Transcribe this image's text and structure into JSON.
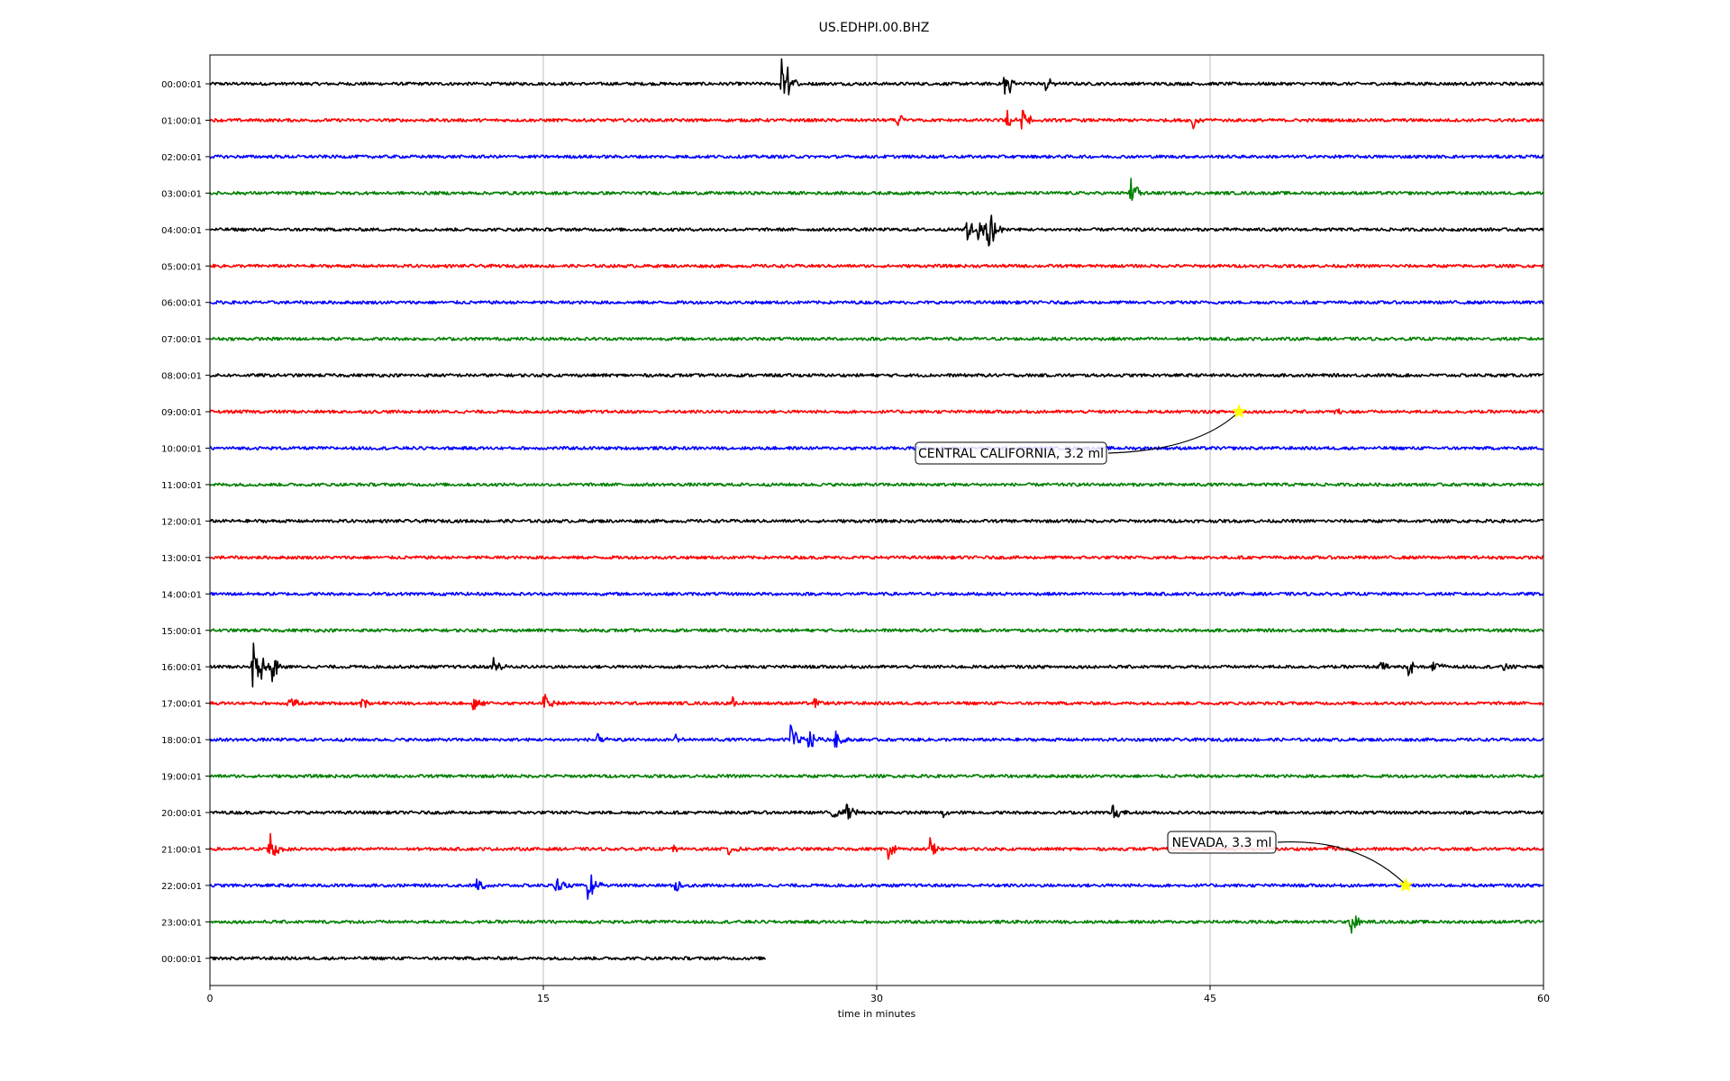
{
  "chart_data": {
    "type": "line",
    "title": "US.EDHPI.00.BHZ",
    "xlabel": "time in minutes",
    "ylabel": "",
    "xlim": [
      0,
      60
    ],
    "x_ticks": [
      0,
      15,
      30,
      45,
      60
    ],
    "grid": "vertical",
    "colors": [
      "#000000",
      "#ff0000",
      "#0000ff",
      "#008000"
    ],
    "noise_amplitude": 0.045,
    "rows": [
      {
        "label": "00:00:01",
        "end": 60,
        "events": [
          {
            "t": 25.7,
            "a": 1.1
          },
          {
            "t": 25.8,
            "a": 0.5
          },
          {
            "t": 35.7,
            "a": 0.45
          },
          {
            "t": 36.0,
            "a": 0.3
          },
          {
            "t": 37.6,
            "a": 0.25
          }
        ]
      },
      {
        "label": "01:00:01",
        "end": 60,
        "events": [
          {
            "t": 30.9,
            "a": 0.3
          },
          {
            "t": 35.8,
            "a": 0.4
          },
          {
            "t": 36.5,
            "a": 0.5
          },
          {
            "t": 44.2,
            "a": 0.35
          }
        ]
      },
      {
        "label": "02:00:01",
        "end": 60,
        "events": []
      },
      {
        "label": "03:00:01",
        "end": 60,
        "events": [
          {
            "t": 41.4,
            "a": 0.55
          }
        ]
      },
      {
        "label": "04:00:01",
        "end": 60,
        "events": [
          {
            "t": 34.0,
            "a": 0.5
          },
          {
            "t": 34.5,
            "a": 0.4
          },
          {
            "t": 34.9,
            "a": 1.0
          },
          {
            "t": 35.2,
            "a": 0.35
          }
        ]
      },
      {
        "label": "05:00:01",
        "end": 60,
        "events": []
      },
      {
        "label": "06:00:01",
        "end": 60,
        "events": []
      },
      {
        "label": "07:00:01",
        "end": 60,
        "events": []
      },
      {
        "label": "08:00:01",
        "end": 60,
        "events": []
      },
      {
        "label": "09:00:01",
        "end": 60,
        "events": [
          {
            "t": 50.6,
            "a": 0.12
          }
        ]
      },
      {
        "label": "10:00:01",
        "end": 60,
        "events": []
      },
      {
        "label": "11:00:01",
        "end": 60,
        "events": []
      },
      {
        "label": "12:00:01",
        "end": 60,
        "events": []
      },
      {
        "label": "13:00:01",
        "end": 60,
        "events": []
      },
      {
        "label": "14:00:01",
        "end": 60,
        "events": []
      },
      {
        "label": "15:00:01",
        "end": 60,
        "events": []
      },
      {
        "label": "16:00:01",
        "end": 60,
        "events": [
          {
            "t": 1.9,
            "a": 0.95
          },
          {
            "t": 2.3,
            "a": 0.5
          },
          {
            "t": 2.8,
            "a": 0.45
          },
          {
            "t": 12.7,
            "a": 0.4
          },
          {
            "t": 52.6,
            "a": 0.2
          },
          {
            "t": 53.9,
            "a": 0.3
          },
          {
            "t": 55.0,
            "a": 0.3
          },
          {
            "t": 58.2,
            "a": 0.15
          }
        ]
      },
      {
        "label": "17:00:01",
        "end": 60,
        "events": [
          {
            "t": 3.5,
            "a": 0.3
          },
          {
            "t": 6.8,
            "a": 0.2
          },
          {
            "t": 11.8,
            "a": 0.3
          },
          {
            "t": 15.0,
            "a": 0.35
          },
          {
            "t": 23.5,
            "a": 0.2
          },
          {
            "t": 27.2,
            "a": 0.15
          }
        ]
      },
      {
        "label": "18:00:01",
        "end": 60,
        "events": [
          {
            "t": 17.3,
            "a": 0.25
          },
          {
            "t": 20.9,
            "a": 0.2
          },
          {
            "t": 26.1,
            "a": 0.55
          },
          {
            "t": 26.9,
            "a": 0.45
          },
          {
            "t": 28.1,
            "a": 0.35
          }
        ]
      },
      {
        "label": "19:00:01",
        "end": 60,
        "events": []
      },
      {
        "label": "20:00:01",
        "end": 60,
        "events": [
          {
            "t": 28.0,
            "a": 0.3
          },
          {
            "t": 28.6,
            "a": 0.45
          },
          {
            "t": 33.0,
            "a": 0.15
          },
          {
            "t": 40.5,
            "a": 0.45
          }
        ]
      },
      {
        "label": "21:00:01",
        "end": 60,
        "events": [
          {
            "t": 2.6,
            "a": 1.0
          },
          {
            "t": 20.8,
            "a": 0.2
          },
          {
            "t": 23.3,
            "a": 0.3
          },
          {
            "t": 30.5,
            "a": 0.3
          },
          {
            "t": 32.4,
            "a": 0.35
          },
          {
            "t": 50.3,
            "a": 0.25
          }
        ]
      },
      {
        "label": "22:00:01",
        "end": 60,
        "events": [
          {
            "t": 12.0,
            "a": 0.25
          },
          {
            "t": 15.5,
            "a": 0.45
          },
          {
            "t": 17.0,
            "a": 0.65
          },
          {
            "t": 20.9,
            "a": 0.3
          }
        ]
      },
      {
        "label": "23:00:01",
        "end": 60,
        "events": [
          {
            "t": 51.3,
            "a": 0.5
          }
        ]
      },
      {
        "label": "00:00:01",
        "end": 25,
        "events": []
      }
    ],
    "annotations": [
      {
        "text": "CENTRAL CALIFORNIA, 3.2 ml",
        "row": 9,
        "t": 46.3,
        "star_color": "#ffff00"
      },
      {
        "text": "NEVADA, 3.3 ml",
        "row": 22,
        "t": 53.8,
        "star_color": "#ffff00"
      }
    ]
  }
}
